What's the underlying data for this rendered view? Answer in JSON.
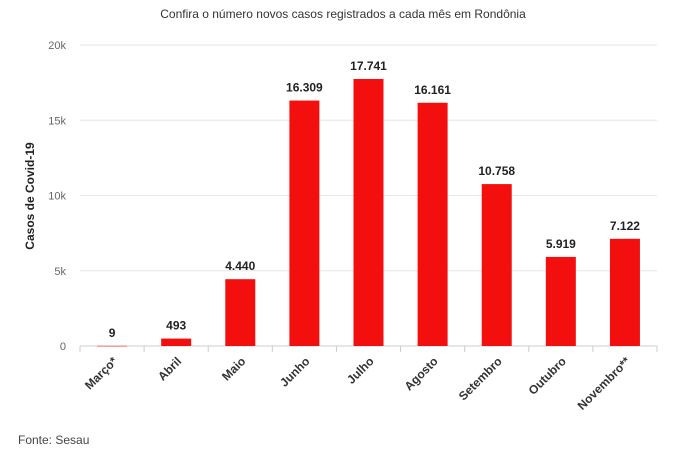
{
  "chart_data": {
    "type": "bar",
    "title": "Confira o número novos casos registrados a cada mês em Rondônia",
    "ylabel": "Casos de Covid-19",
    "xlabel": "",
    "ylim": [
      0,
      20000
    ],
    "yticks": [
      0,
      5000,
      10000,
      15000,
      20000
    ],
    "ytick_labels": [
      "0",
      "5k",
      "10k",
      "15k",
      "20k"
    ],
    "grid": true,
    "legend": "none",
    "bar_color": "#f40f0f",
    "categories": [
      "Março*",
      "Abril",
      "Maio",
      "Junho",
      "Julho",
      "Agosto",
      "Setembro",
      "Outubro",
      "Novembro**"
    ],
    "values": [
      9,
      493,
      4440,
      16309,
      17741,
      16161,
      10758,
      5919,
      7122
    ],
    "value_labels": [
      "9",
      "493",
      "4.440",
      "16.309",
      "17.741",
      "16.161",
      "10.758",
      "5.919",
      "7.122"
    ]
  },
  "footer": {
    "source": "Fonte: Sesau"
  }
}
